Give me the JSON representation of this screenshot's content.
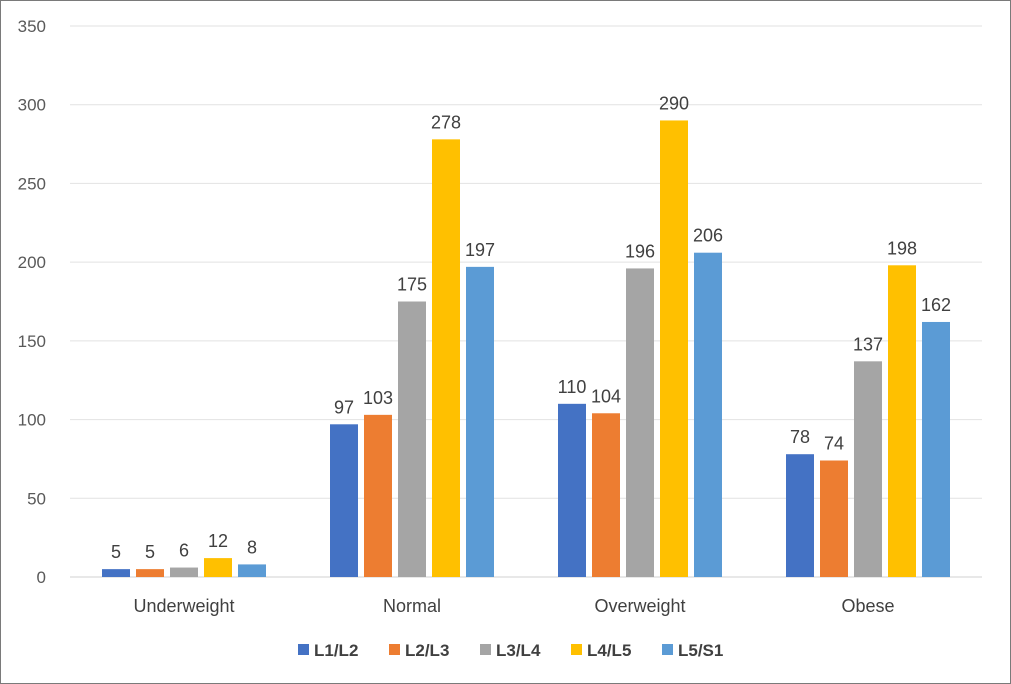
{
  "chart_data": {
    "type": "bar",
    "title": "",
    "xlabel": "",
    "ylabel": "",
    "ylim": [
      0,
      350
    ],
    "yticks": [
      0,
      50,
      100,
      150,
      200,
      250,
      300,
      350
    ],
    "grid": true,
    "legend_position": "bottom",
    "categories": [
      "Underweight",
      "Normal",
      "Overweight",
      "Obese"
    ],
    "series": [
      {
        "name": "L1/L2",
        "color": "#4472C4",
        "values": [
          5,
          97,
          110,
          78
        ]
      },
      {
        "name": "L2/L3",
        "color": "#ED7D31",
        "values": [
          5,
          103,
          104,
          74
        ]
      },
      {
        "name": "L3/L4",
        "color": "#A5A5A5",
        "values": [
          6,
          175,
          196,
          137
        ]
      },
      {
        "name": "L4/L5",
        "color": "#FFC000",
        "values": [
          12,
          278,
          290,
          198
        ]
      },
      {
        "name": "L5/S1",
        "color": "#5B9BD5",
        "values": [
          8,
          197,
          206,
          162
        ]
      }
    ]
  }
}
